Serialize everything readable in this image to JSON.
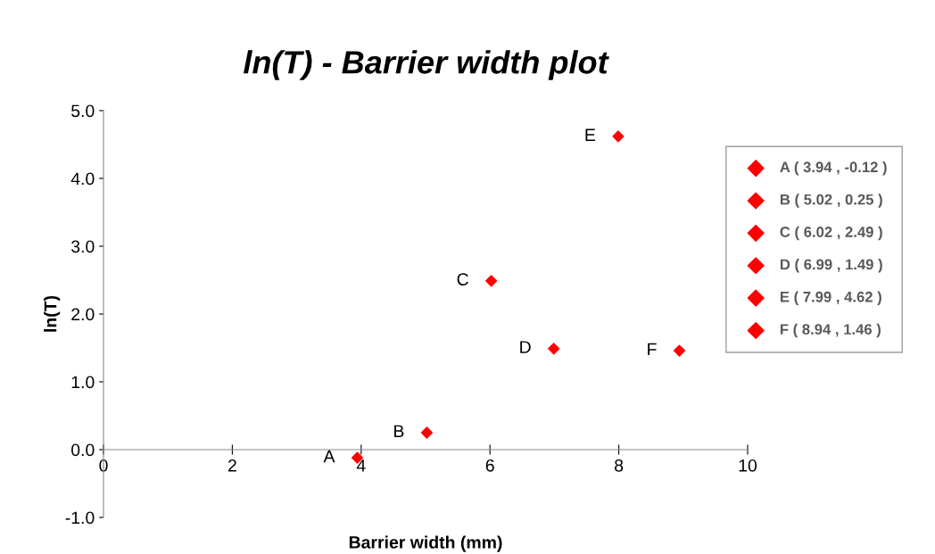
{
  "chart_data": {
    "type": "scatter",
    "title": "ln(T) - Barrier width plot",
    "xlabel": "Barrier width (mm)",
    "ylabel": "ln(T)",
    "xlim": [
      0,
      10
    ],
    "xticks": [
      0,
      2,
      4,
      6,
      8,
      10
    ],
    "ylim": [
      -1,
      5
    ],
    "yticks": [
      {
        "value": -1,
        "label": "-1.0"
      },
      {
        "value": 0,
        "label": "0.0"
      },
      {
        "value": 1,
        "label": "1.0"
      },
      {
        "value": 2,
        "label": "2.0"
      },
      {
        "value": 3,
        "label": "3.0"
      },
      {
        "value": 4,
        "label": "4.0"
      },
      {
        "value": 5,
        "label": "5.0"
      }
    ],
    "marker": "diamond",
    "grid": false,
    "legend": "right",
    "series": [
      {
        "name": "A ( 3.94 , -0.12 )",
        "color": "#ff0000",
        "x": [
          3.94
        ],
        "values": [
          -0.12
        ]
      },
      {
        "name": "B ( 5.02 , 0.25 )",
        "color": "#ff0000",
        "x": [
          5.02
        ],
        "values": [
          0.25
        ]
      },
      {
        "name": "C ( 6.02 , 2.49 )",
        "color": "#ff0000",
        "x": [
          6.02
        ],
        "values": [
          2.49
        ]
      },
      {
        "name": "D ( 6.99 , 1.49 )",
        "color": "#ff0000",
        "x": [
          6.99
        ],
        "values": [
          1.49
        ]
      },
      {
        "name": "E ( 7.99 , 4.62 )",
        "color": "#ff0000",
        "x": [
          7.99
        ],
        "values": [
          4.62
        ]
      },
      {
        "name": "F ( 8.94 , 1.46 )",
        "color": "#ff0000",
        "x": [
          8.94
        ],
        "values": [
          1.46
        ]
      }
    ],
    "annotations": [
      {
        "text": "A",
        "x": 3.94,
        "y": -0.12
      },
      {
        "text": "B",
        "x": 5.02,
        "y": 0.25
      },
      {
        "text": "C",
        "x": 6.02,
        "y": 2.49
      },
      {
        "text": "D",
        "x": 6.99,
        "y": 1.49
      },
      {
        "text": "E",
        "x": 7.99,
        "y": 4.62
      },
      {
        "text": "F",
        "x": 8.94,
        "y": 1.46
      }
    ]
  }
}
